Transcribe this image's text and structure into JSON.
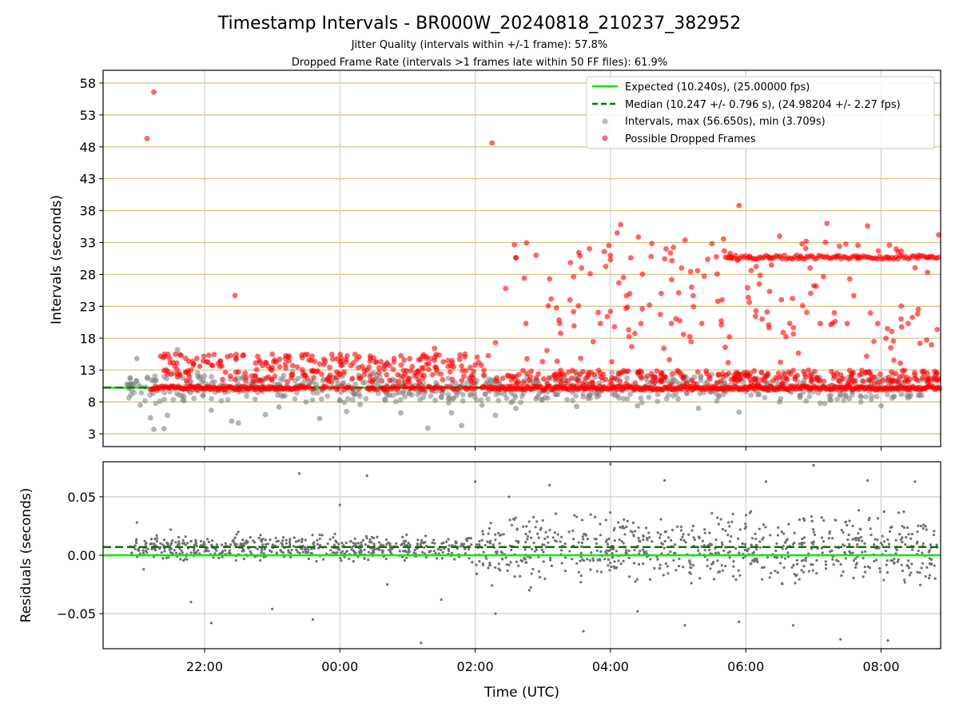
{
  "chart_data": [
    {
      "type": "scatter",
      "title": "Timestamp Intervals - BR000W_20240818_210237_382952",
      "subtitle_1": "Jitter Quality (intervals within +/-1 frame): 57.8%",
      "subtitle_2": "Dropped Frame Rate (intervals >1 frames late within 50 FF files): 61.9%",
      "ylabel": "Intervals (seconds)",
      "xlim_hours": [
        -3.5,
        8.88
      ],
      "ylim": [
        1,
        60
      ],
      "x_ticks": [
        {
          "value": -2,
          "label": "22:00"
        },
        {
          "value": 0,
          "label": "00:00"
        },
        {
          "value": 2,
          "label": "02:00"
        },
        {
          "value": 4,
          "label": "04:00"
        },
        {
          "value": 6,
          "label": "06:00"
        },
        {
          "value": 8,
          "label": "08:00"
        }
      ],
      "y_ticks": [
        {
          "value": 3,
          "label": "3"
        },
        {
          "value": 8,
          "label": "8"
        },
        {
          "value": 13,
          "label": "13"
        },
        {
          "value": 18,
          "label": "18"
        },
        {
          "value": 23,
          "label": "23"
        },
        {
          "value": 28,
          "label": "28"
        },
        {
          "value": 33,
          "label": "33"
        },
        {
          "value": 38,
          "label": "38"
        },
        {
          "value": 43,
          "label": "43"
        },
        {
          "value": 48,
          "label": "48"
        },
        {
          "value": 53,
          "label": "53"
        },
        {
          "value": 58,
          "label": "58"
        }
      ],
      "grid": true,
      "legend_position": "top-right",
      "legend": [
        {
          "label": "Expected (10.240s), (25.00000 fps)",
          "style": "line",
          "color": "#00ee00"
        },
        {
          "label": "Median (10.247 +/- 0.796 s), (24.98204 +/- 2.27 fps)",
          "style": "dashed",
          "color": "#007700"
        },
        {
          "label": "Intervals, max (56.650s), min (3.709s)",
          "style": "dot",
          "color": "#888888"
        },
        {
          "label": "Possible Dropped Frames",
          "style": "dot",
          "color": "#ff0000"
        }
      ],
      "expected_interval": 10.24,
      "median_interval": 10.247,
      "series": [
        {
          "name": "Intervals, max (56.650s), min (3.709s)",
          "color": "#808080",
          "points": [
            [
              -3.1,
              11.8
            ],
            [
              -3.0,
              14.8
            ],
            [
              -2.95,
              7.5
            ],
            [
              -2.8,
              5.5
            ],
            [
              -2.75,
              3.7
            ],
            [
              -2.6,
              3.8
            ],
            [
              -2.55,
              5.9
            ],
            [
              -2.4,
              16.2
            ],
            [
              -2.3,
              8.2
            ],
            [
              -2.1,
              12.0
            ],
            [
              -1.9,
              6.7
            ],
            [
              -1.7,
              9.5
            ],
            [
              -1.6,
              5.0
            ],
            [
              -1.5,
              4.7
            ],
            [
              -1.3,
              11.3
            ],
            [
              -1.1,
              6.0
            ],
            [
              -0.9,
              7.2
            ],
            [
              -0.7,
              12.8
            ],
            [
              -0.5,
              8.0
            ],
            [
              -0.3,
              5.4
            ],
            [
              -0.1,
              11.8
            ],
            [
              0.1,
              6.5
            ],
            [
              0.3,
              7.6
            ],
            [
              0.5,
              12.5
            ],
            [
              0.7,
              9.0
            ],
            [
              0.9,
              6.3
            ],
            [
              1.1,
              12.0
            ],
            [
              1.3,
              3.9
            ],
            [
              1.5,
              8.7
            ],
            [
              1.65,
              6.3
            ],
            [
              1.8,
              4.3
            ],
            [
              1.95,
              12.0
            ],
            [
              2.1,
              7.5
            ],
            [
              2.3,
              5.9
            ],
            [
              2.6,
              7.0
            ],
            [
              2.9,
              8.5
            ],
            [
              3.2,
              9.2
            ],
            [
              3.5,
              7.3
            ],
            [
              3.8,
              8.8
            ],
            [
              4.1,
              9.0
            ],
            [
              4.4,
              7.4
            ],
            [
              4.7,
              9.2
            ],
            [
              5.0,
              8.5
            ],
            [
              5.3,
              7.0
            ],
            [
              5.6,
              9.0
            ],
            [
              5.9,
              6.4
            ],
            [
              6.2,
              9.2
            ],
            [
              6.5,
              8.0
            ],
            [
              6.8,
              9.0
            ],
            [
              7.1,
              7.8
            ],
            [
              7.4,
              9.0
            ],
            [
              7.7,
              8.0
            ],
            [
              8.0,
              7.4
            ],
            [
              8.3,
              9.2
            ],
            [
              8.6,
              9.0
            ]
          ]
        },
        {
          "name": "Possible Dropped Frames",
          "color": "#ff0000",
          "points": [
            [
              -2.75,
              56.6
            ],
            [
              -2.85,
              49.3
            ],
            [
              -1.55,
              24.7
            ],
            [
              2.25,
              48.6
            ],
            [
              -2.6,
              12.9
            ],
            [
              -2.2,
              13.0
            ],
            [
              -1.8,
              14.0
            ],
            [
              -1.4,
              12.5
            ],
            [
              -1.0,
              15.5
            ],
            [
              -0.8,
              13.3
            ],
            [
              -0.4,
              12.8
            ],
            [
              0.0,
              14.3
            ],
            [
              0.4,
              13.0
            ],
            [
              0.8,
              14.8
            ],
            [
              1.2,
              12.3
            ],
            [
              1.4,
              16.4
            ],
            [
              1.6,
              13.6
            ],
            [
              1.85,
              15.5
            ],
            [
              2.05,
              14.2
            ],
            [
              2.3,
              17.3
            ],
            [
              2.45,
              25.8
            ],
            [
              2.6,
              30.6
            ],
            [
              2.75,
              20.3
            ],
            [
              2.9,
              31.0
            ],
            [
              3.1,
              27.3
            ],
            [
              3.25,
              20.3
            ],
            [
              3.4,
              24.0
            ],
            [
              3.55,
              30.9
            ],
            [
              3.7,
              28.1
            ],
            [
              3.85,
              20.3
            ],
            [
              4.0,
              30.3
            ],
            [
              4.1,
              34.5
            ],
            [
              4.15,
              35.8
            ],
            [
              4.3,
              30.6
            ],
            [
              4.45,
              20.3
            ],
            [
              4.6,
              30.8
            ],
            [
              4.75,
              25.0
            ],
            [
              4.9,
              20.3
            ],
            [
              5.05,
              29.0
            ],
            [
              5.2,
              26.0
            ],
            [
              5.35,
              20.3
            ],
            [
              5.5,
              32.8
            ],
            [
              5.65,
              24.0
            ],
            [
              5.8,
              30.7
            ],
            [
              5.9,
              38.8
            ],
            [
              6.05,
              30.7
            ],
            [
              6.2,
              26.5
            ],
            [
              6.35,
              30.7
            ],
            [
              6.5,
              34.0
            ],
            [
              6.65,
              20.3
            ],
            [
              6.8,
              30.7
            ],
            [
              6.95,
              29.0
            ],
            [
              7.1,
              20.3
            ],
            [
              7.2,
              36.0
            ],
            [
              7.35,
              30.7
            ],
            [
              7.5,
              20.3
            ],
            [
              7.65,
              30.7
            ],
            [
              7.8,
              35.6
            ],
            [
              7.95,
              20.3
            ],
            [
              8.1,
              30.7
            ],
            [
              8.25,
              31.5
            ],
            [
              8.4,
              20.3
            ],
            [
              8.55,
              31.0
            ],
            [
              8.7,
              30.7
            ],
            [
              8.85,
              34.2
            ]
          ]
        }
      ]
    },
    {
      "type": "scatter",
      "ylabel": "Residuals (seconds)",
      "xlabel": "Time (UTC)",
      "ylim": [
        -0.08,
        0.08
      ],
      "y_ticks": [
        {
          "value": 0.05,
          "label": "0.05"
        },
        {
          "value": 0.0,
          "label": "0.00"
        },
        {
          "value": -0.05,
          "label": "−0.05"
        }
      ],
      "expected_residual": 0.0,
      "median_residual": 0.007,
      "series": [
        {
          "name": "Residuals",
          "color": "#707070",
          "points": [
            [
              -3.0,
              0.028
            ],
            [
              -2.9,
              -0.012
            ],
            [
              -2.5,
              0.022
            ],
            [
              -2.2,
              -0.04
            ],
            [
              -1.9,
              -0.058
            ],
            [
              -1.5,
              0.02
            ],
            [
              -1.0,
              -0.046
            ],
            [
              -0.6,
              0.07
            ],
            [
              -0.4,
              -0.055
            ],
            [
              0.0,
              0.043
            ],
            [
              0.4,
              0.068
            ],
            [
              0.7,
              -0.025
            ],
            [
              1.2,
              -0.075
            ],
            [
              1.5,
              -0.038
            ],
            [
              2.0,
              0.063
            ],
            [
              2.3,
              -0.05
            ],
            [
              2.5,
              0.05
            ],
            [
              2.8,
              -0.03
            ],
            [
              3.1,
              0.06
            ],
            [
              3.6,
              -0.065
            ],
            [
              4.0,
              0.078
            ],
            [
              4.4,
              -0.048
            ],
            [
              4.8,
              0.064
            ],
            [
              5.1,
              -0.06
            ],
            [
              5.5,
              0.036
            ],
            [
              5.9,
              -0.057
            ],
            [
              6.3,
              0.063
            ],
            [
              6.7,
              -0.06
            ],
            [
              7.0,
              0.077
            ],
            [
              7.4,
              -0.072
            ],
            [
              7.8,
              0.064
            ],
            [
              8.1,
              -0.073
            ],
            [
              8.5,
              0.063
            ],
            [
              8.8,
              -0.02
            ]
          ]
        }
      ]
    }
  ]
}
